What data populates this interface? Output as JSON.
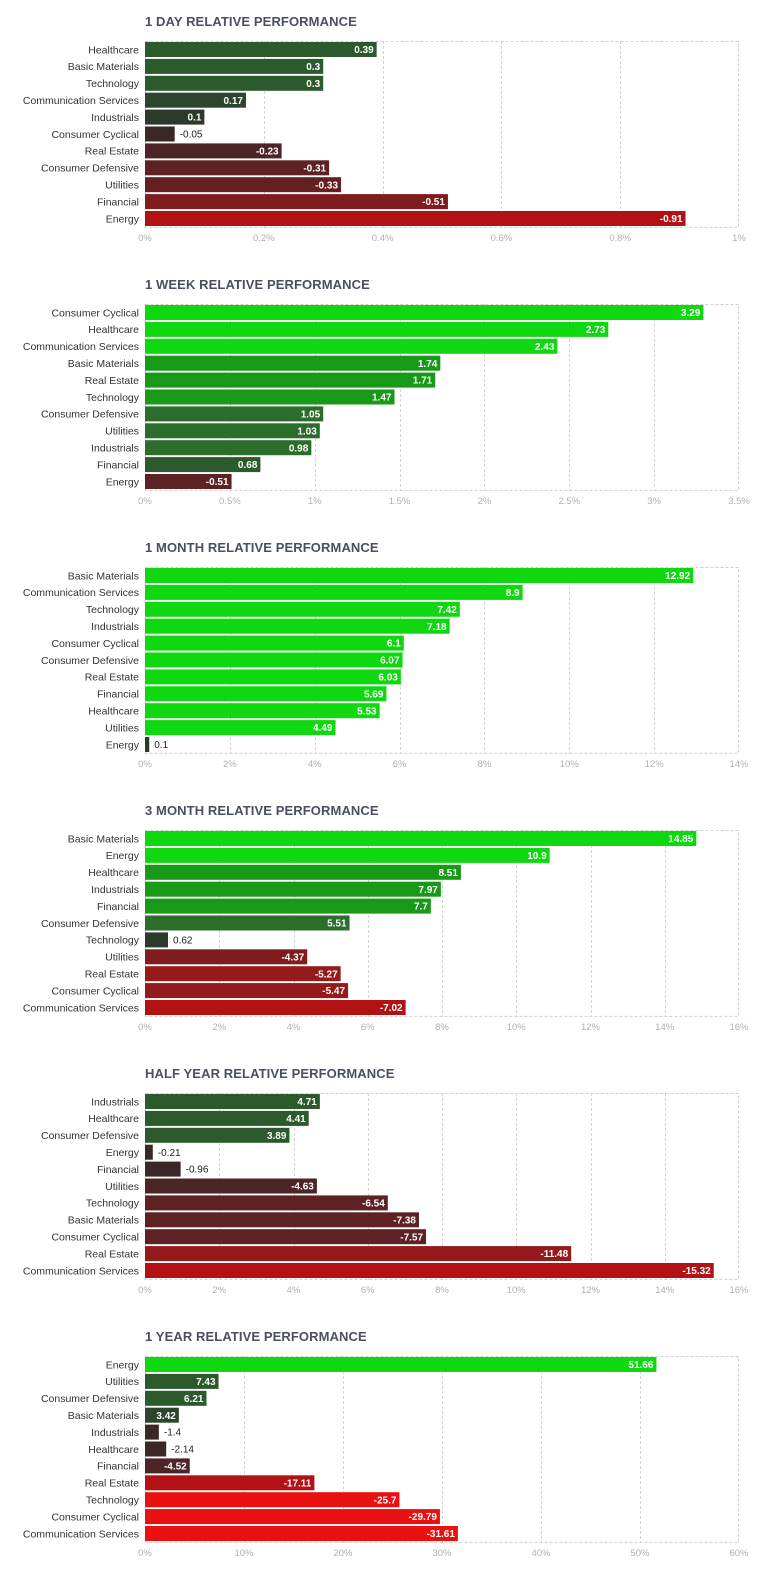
{
  "chart_data": [
    {
      "type": "bar",
      "orientation": "horizontal",
      "title": "1 DAY RELATIVE PERFORMANCE",
      "categories": [
        "Healthcare",
        "Basic Materials",
        "Technology",
        "Communication Services",
        "Industrials",
        "Consumer Cyclical",
        "Real Estate",
        "Consumer Defensive",
        "Utilities",
        "Financial",
        "Energy"
      ],
      "values": [
        0.39,
        0.3,
        0.3,
        0.17,
        0.1,
        -0.05,
        -0.23,
        -0.31,
        -0.33,
        -0.51,
        -0.91
      ],
      "value_labels": [
        "0.39",
        "0.3",
        "0.3",
        "0.17",
        "0.1",
        "-0.05",
        "-0.23",
        "-0.31",
        "-0.33",
        "-0.51",
        "-0.91"
      ],
      "xlim": [
        0,
        1
      ],
      "ticks": [
        0,
        0.2,
        0.4,
        0.6,
        0.8,
        1
      ],
      "tick_labels": [
        "0%",
        "0.2%",
        "0.4%",
        "0.6%",
        "0.8%",
        "1%"
      ],
      "bar_colors": [
        "#2d5a2d",
        "#2d5a2d",
        "#2d5a2d",
        "#2c452c",
        "#2c3a2c",
        "#3a2828",
        "#4e2526",
        "#5e2224",
        "#651f21",
        "#7f1c1e",
        "#b31215"
      ]
    },
    {
      "type": "bar",
      "orientation": "horizontal",
      "title": "1 WEEK RELATIVE PERFORMANCE",
      "categories": [
        "Consumer Cyclical",
        "Healthcare",
        "Communication Services",
        "Basic Materials",
        "Real Estate",
        "Technology",
        "Consumer Defensive",
        "Utilities",
        "Industrials",
        "Financial",
        "Energy"
      ],
      "values": [
        3.29,
        2.73,
        2.43,
        1.74,
        1.71,
        1.47,
        1.05,
        1.03,
        0.98,
        0.68,
        -0.51
      ],
      "value_labels": [
        "3.29",
        "2.73",
        "2.43",
        "1.74",
        "1.71",
        "1.47",
        "1.05",
        "1.03",
        "0.98",
        "0.68",
        "-0.51"
      ],
      "xlim": [
        0,
        3.5
      ],
      "ticks": [
        0,
        0.5,
        1,
        1.5,
        2,
        2.5,
        3,
        3.5
      ],
      "tick_labels": [
        "0%",
        "0.5%",
        "1%",
        "1.5%",
        "2%",
        "2.5%",
        "3%",
        "3.5%"
      ],
      "bar_colors": [
        "#10d810",
        "#10d810",
        "#10d810",
        "#189a18",
        "#189a18",
        "#189a18",
        "#2b6e2b",
        "#2b6e2b",
        "#2b6e2b",
        "#2d5a2d",
        "#5e2224"
      ]
    },
    {
      "type": "bar",
      "orientation": "horizontal",
      "title": "1 MONTH RELATIVE PERFORMANCE",
      "categories": [
        "Basic Materials",
        "Communication Services",
        "Technology",
        "Industrials",
        "Consumer Cyclical",
        "Consumer Defensive",
        "Real Estate",
        "Financial",
        "Healthcare",
        "Utilities",
        "Energy"
      ],
      "values": [
        12.92,
        8.9,
        7.42,
        7.18,
        6.1,
        6.07,
        6.03,
        5.69,
        5.53,
        4.49,
        0.1
      ],
      "value_labels": [
        "12.92",
        "8.9",
        "7.42",
        "7.18",
        "6.1",
        "6.07",
        "6.03",
        "5.69",
        "5.53",
        "4.49",
        "0.1"
      ],
      "xlim": [
        0,
        14
      ],
      "ticks": [
        0,
        2,
        4,
        6,
        8,
        10,
        12,
        14
      ],
      "tick_labels": [
        "0%",
        "2%",
        "4%",
        "6%",
        "8%",
        "10%",
        "12%",
        "14%"
      ],
      "bar_colors": [
        "#10d810",
        "#10d810",
        "#10d810",
        "#10d810",
        "#10d810",
        "#10d810",
        "#10d810",
        "#10d810",
        "#10d810",
        "#10d810",
        "#2c3a2c"
      ]
    },
    {
      "type": "bar",
      "orientation": "horizontal",
      "title": "3 MONTH RELATIVE PERFORMANCE",
      "categories": [
        "Basic Materials",
        "Energy",
        "Healthcare",
        "Industrials",
        "Financial",
        "Consumer Defensive",
        "Technology",
        "Utilities",
        "Real Estate",
        "Consumer Cyclical",
        "Communication Services"
      ],
      "values": [
        14.85,
        10.9,
        8.51,
        7.97,
        7.7,
        5.51,
        0.62,
        -4.37,
        -5.27,
        -5.47,
        -7.02
      ],
      "value_labels": [
        "14.85",
        "10.9",
        "8.51",
        "7.97",
        "7.7",
        "5.51",
        "0.62",
        "-4.37",
        "-5.27",
        "-5.47",
        "-7.02"
      ],
      "xlim": [
        0,
        16
      ],
      "ticks": [
        0,
        2,
        4,
        6,
        8,
        10,
        12,
        14,
        16
      ],
      "tick_labels": [
        "0%",
        "2%",
        "4%",
        "6%",
        "8%",
        "10%",
        "12%",
        "14%",
        "16%"
      ],
      "bar_colors": [
        "#10d810",
        "#10d810",
        "#189a18",
        "#189a18",
        "#189a18",
        "#2b6e2b",
        "#2c3a2c",
        "#7f1c1e",
        "#951a1c",
        "#951a1c",
        "#b31215"
      ]
    },
    {
      "type": "bar",
      "orientation": "horizontal",
      "title": "HALF YEAR RELATIVE PERFORMANCE",
      "categories": [
        "Industrials",
        "Healthcare",
        "Consumer Defensive",
        "Energy",
        "Financial",
        "Utilities",
        "Technology",
        "Basic Materials",
        "Consumer Cyclical",
        "Real Estate",
        "Communication Services"
      ],
      "values": [
        4.71,
        4.41,
        3.89,
        -0.21,
        -0.96,
        -4.63,
        -6.54,
        -7.38,
        -7.57,
        -11.48,
        -15.32
      ],
      "value_labels": [
        "4.71",
        "4.41",
        "3.89",
        "-0.21",
        "-0.96",
        "-4.63",
        "-6.54",
        "-7.38",
        "-7.57",
        "-11.48",
        "-15.32"
      ],
      "xlim": [
        0,
        16
      ],
      "ticks": [
        0,
        2,
        4,
        6,
        8,
        10,
        12,
        14,
        16
      ],
      "tick_labels": [
        "0%",
        "2%",
        "4%",
        "6%",
        "8%",
        "10%",
        "12%",
        "14%",
        "16%"
      ],
      "bar_colors": [
        "#2d5a2d",
        "#2d5a2d",
        "#2d5a2d",
        "#3a2828",
        "#3a2828",
        "#4e2526",
        "#5e2224",
        "#5e2224",
        "#5e2224",
        "#951a1c",
        "#b31215"
      ]
    },
    {
      "type": "bar",
      "orientation": "horizontal",
      "title": "1 YEAR RELATIVE PERFORMANCE",
      "categories": [
        "Energy",
        "Utilities",
        "Consumer Defensive",
        "Basic Materials",
        "Industrials",
        "Healthcare",
        "Financial",
        "Real Estate",
        "Technology",
        "Consumer Cyclical",
        "Communication Services"
      ],
      "values": [
        51.66,
        7.43,
        6.21,
        3.42,
        -1.4,
        -2.14,
        -4.52,
        -17.11,
        -25.7,
        -29.79,
        -31.61
      ],
      "value_labels": [
        "51.66",
        "7.43",
        "6.21",
        "3.42",
        "-1.4",
        "-2.14",
        "-4.52",
        "-17.11",
        "-25.7",
        "-29.79",
        "-31.61"
      ],
      "xlim": [
        0,
        60
      ],
      "ticks": [
        0,
        10,
        20,
        30,
        40,
        50,
        60
      ],
      "tick_labels": [
        "0%",
        "10%",
        "20%",
        "30%",
        "40%",
        "50%",
        "60%"
      ],
      "bar_colors": [
        "#10d810",
        "#2d5a2d",
        "#2d5a2d",
        "#2c452c",
        "#3a2828",
        "#3a2828",
        "#4e2526",
        "#b31215",
        "#e81010",
        "#e81010",
        "#e81010"
      ]
    }
  ]
}
